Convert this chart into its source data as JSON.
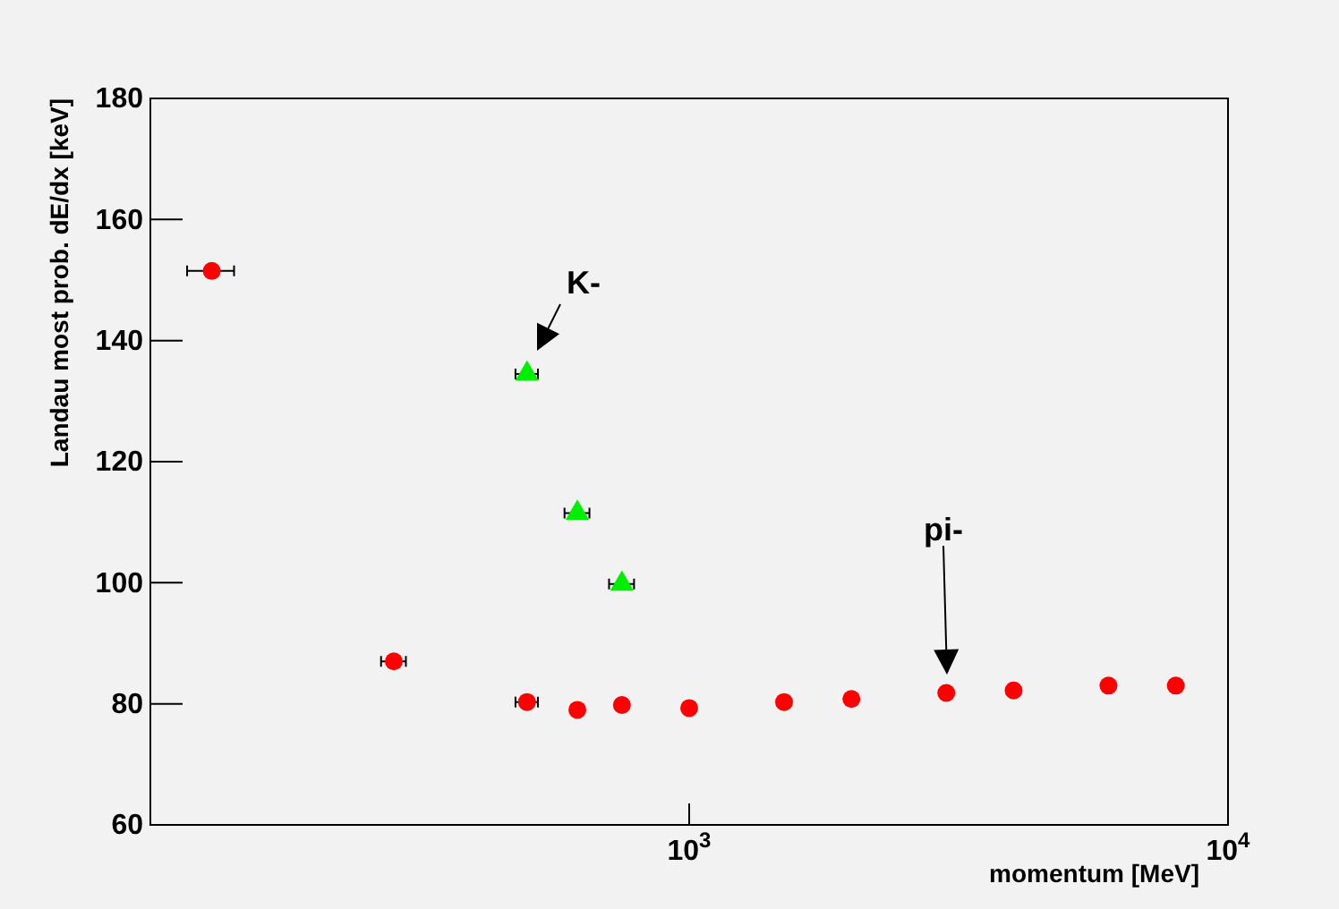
{
  "chart_data": {
    "type": "scatter",
    "xlabel": "momentum [MeV]",
    "ylabel": "Landau most prob. dE/dx [keV]",
    "log": "x",
    "grid": false,
    "xlim": [
      100,
      10000
    ],
    "xticks": [
      {
        "value": 1000,
        "label": "10$^{3}$"
      },
      {
        "value": 10000,
        "label": "10$^{4}$"
      }
    ],
    "ylim": [
      60,
      180
    ],
    "yticks": [
      60,
      80,
      100,
      120,
      140,
      160,
      180
    ],
    "series": [
      {
        "color": "#ff0000",
        "marker": "circle",
        "x": [
          130,
          283,
          500,
          620,
          750,
          1000,
          1500,
          2000,
          3000,
          4000,
          6000,
          8000
        ],
        "values": [
          151.5,
          87,
          80.3,
          79,
          79.8,
          79.3,
          80.3,
          80.8,
          81.8,
          82.2,
          83,
          83
        ],
        "xerrors": [
          13,
          15,
          24,
          null,
          null,
          null,
          null,
          null,
          null,
          null,
          null,
          null
        ]
      },
      {
        "color": "#00ee00",
        "marker": "triangle",
        "x": [
          500,
          620,
          750
        ],
        "values": [
          134.5,
          111.5,
          99.8
        ],
        "xerrors": [
          24,
          33,
          40
        ]
      }
    ],
    "annotations": [
      "K-",
      "pi-"
    ]
  }
}
